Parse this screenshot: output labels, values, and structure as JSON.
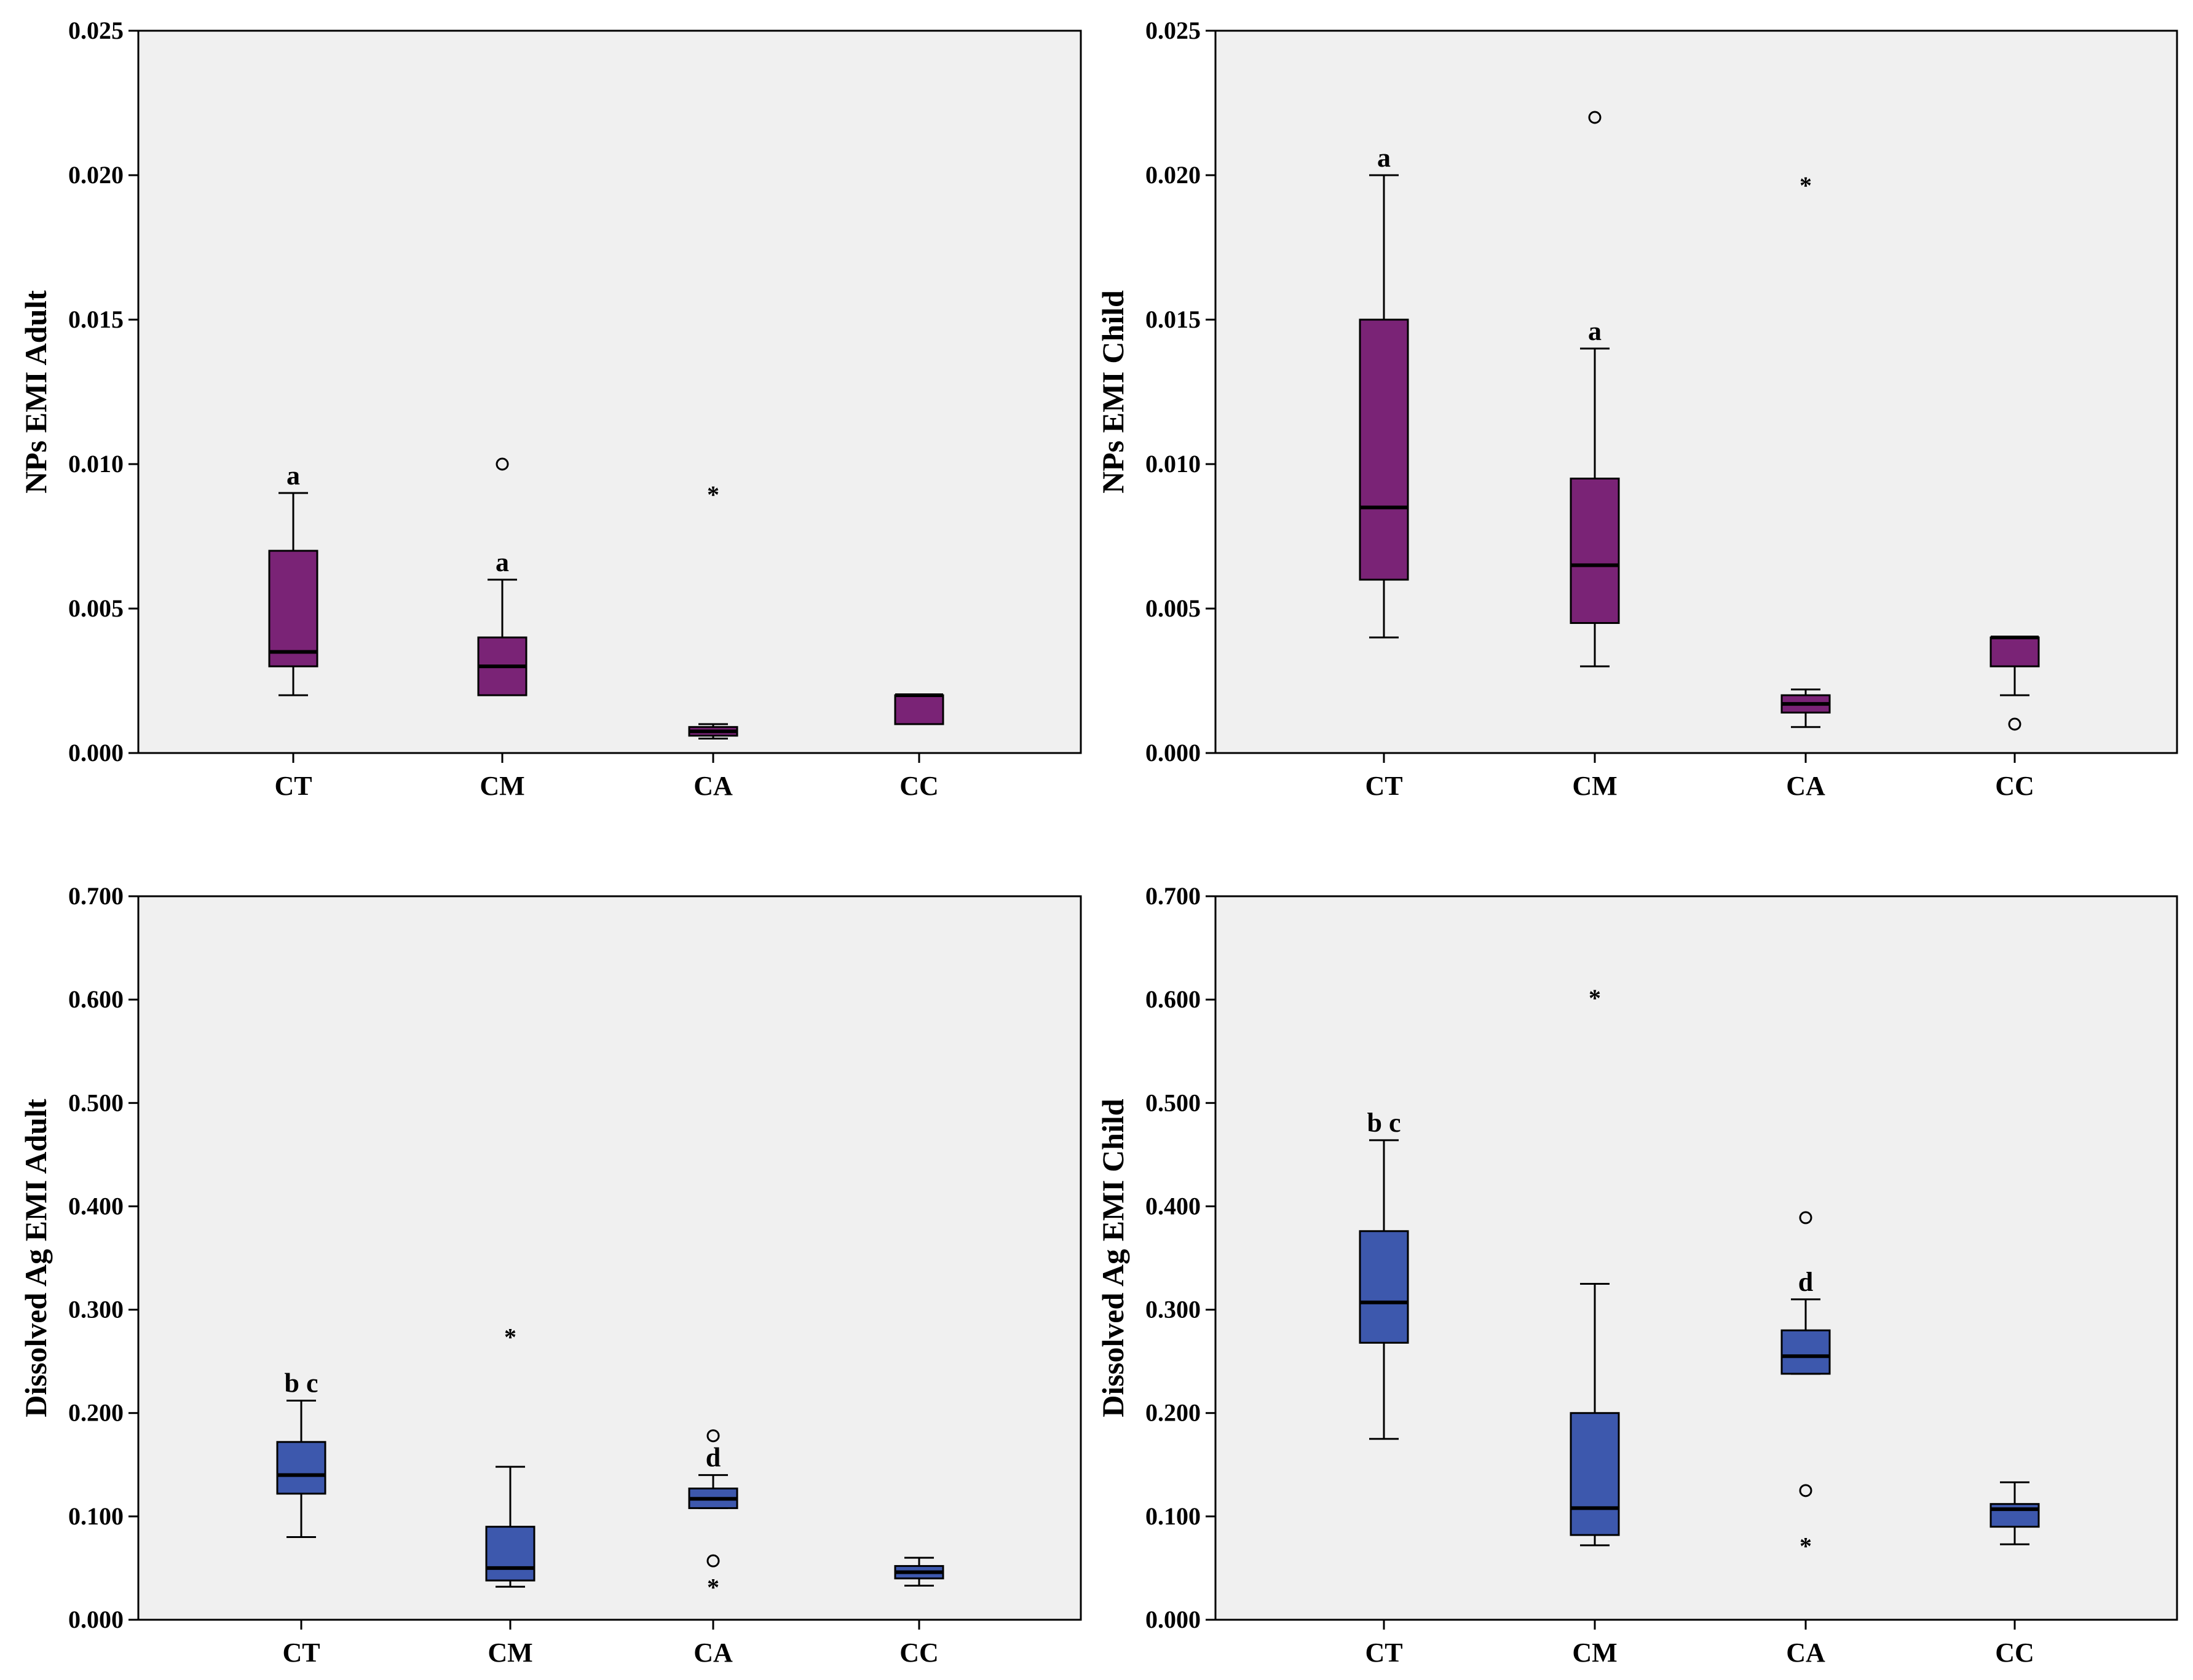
{
  "chart_data": [
    {
      "type": "boxplot",
      "ylabel": "NPs EMI Adult",
      "yticks": [
        "0.000",
        "0.005",
        "0.010",
        "0.015",
        "0.020",
        "0.025"
      ],
      "ylim": [
        0,
        0.025
      ],
      "categories": [
        "CT",
        "CM",
        "CA",
        "CC"
      ],
      "box_color": "#7a2376",
      "boxes": [
        {
          "category": "CT",
          "whisker_low": 0.002,
          "q1": 0.003,
          "median": 0.0035,
          "q3": 0.007,
          "whisker_high": 0.009,
          "outliers": [],
          "extremes": [],
          "label": "a"
        },
        {
          "category": "CM",
          "whisker_low": 0.002,
          "q1": 0.002,
          "median": 0.003,
          "q3": 0.004,
          "whisker_high": 0.006,
          "outliers": [
            0.01
          ],
          "extremes": [],
          "label": "a"
        },
        {
          "category": "CA",
          "whisker_low": 0.0005,
          "q1": 0.0006,
          "median": 0.00075,
          "q3": 0.0009,
          "whisker_high": 0.001,
          "outliers": [],
          "extremes": [
            0.009
          ],
          "label": ""
        },
        {
          "category": "CC",
          "whisker_low": 0.001,
          "q1": 0.001,
          "median": 0.002,
          "q3": 0.002,
          "whisker_high": 0.002,
          "outliers": [],
          "extremes": [],
          "label": ""
        }
      ]
    },
    {
      "type": "boxplot",
      "ylabel": "NPs EMI Child",
      "yticks": [
        "0.000",
        "0.005",
        "0.010",
        "0.015",
        "0.020",
        "0.025"
      ],
      "ylim": [
        0,
        0.025
      ],
      "categories": [
        "CT",
        "CM",
        "CA",
        "CC"
      ],
      "box_color": "#7a2376",
      "boxes": [
        {
          "category": "CT",
          "whisker_low": 0.004,
          "q1": 0.006,
          "median": 0.0085,
          "q3": 0.015,
          "whisker_high": 0.02,
          "outliers": [],
          "extremes": [],
          "label": "a"
        },
        {
          "category": "CM",
          "whisker_low": 0.003,
          "q1": 0.0045,
          "median": 0.0065,
          "q3": 0.0095,
          "whisker_high": 0.014,
          "outliers": [
            0.022
          ],
          "extremes": [],
          "label": "a"
        },
        {
          "category": "CA",
          "whisker_low": 0.0009,
          "q1": 0.0014,
          "median": 0.0017,
          "q3": 0.002,
          "whisker_high": 0.0022,
          "outliers": [],
          "extremes": [
            0.0197
          ],
          "label": ""
        },
        {
          "category": "CC",
          "whisker_low": 0.002,
          "q1": 0.003,
          "median": 0.004,
          "q3": 0.004,
          "whisker_high": 0.004,
          "outliers": [
            0.001
          ],
          "extremes": [],
          "label": ""
        }
      ]
    },
    {
      "type": "boxplot",
      "ylabel": "Dissolved Ag EMI Adult",
      "yticks": [
        "0.000",
        "0.100",
        "0.200",
        "0.300",
        "0.400",
        "0.500",
        "0.600",
        "0.700"
      ],
      "ylim": [
        0,
        0.7
      ],
      "categories": [
        "CT",
        "CM",
        "CA",
        "CC"
      ],
      "box_color": "#3d58ad",
      "boxes": [
        {
          "category": "CT",
          "whisker_low": 0.08,
          "q1": 0.122,
          "median": 0.14,
          "q3": 0.172,
          "whisker_high": 0.212,
          "outliers": [],
          "extremes": [],
          "label": "b c"
        },
        {
          "category": "CM",
          "whisker_low": 0.032,
          "q1": 0.038,
          "median": 0.05,
          "q3": 0.09,
          "whisker_high": 0.148,
          "outliers": [],
          "extremes": [
            0.275
          ],
          "label": ""
        },
        {
          "category": "CA",
          "whisker_low": 0.108,
          "q1": 0.108,
          "median": 0.117,
          "q3": 0.127,
          "whisker_high": 0.14,
          "outliers": [
            0.178,
            0.057
          ],
          "extremes": [
            0.033
          ],
          "label": "d"
        },
        {
          "category": "CC",
          "whisker_low": 0.033,
          "q1": 0.04,
          "median": 0.046,
          "q3": 0.052,
          "whisker_high": 0.06,
          "outliers": [],
          "extremes": [],
          "label": ""
        }
      ]
    },
    {
      "type": "boxplot",
      "ylabel": "Dissolved Ag EMI Child",
      "yticks": [
        "0.000",
        "0.100",
        "0.200",
        "0.300",
        "0.400",
        "0.500",
        "0.600",
        "0.700"
      ],
      "ylim": [
        0,
        0.7
      ],
      "categories": [
        "CT",
        "CM",
        "CA",
        "CC"
      ],
      "box_color": "#3d58ad",
      "boxes": [
        {
          "category": "CT",
          "whisker_low": 0.175,
          "q1": 0.268,
          "median": 0.307,
          "q3": 0.376,
          "whisker_high": 0.464,
          "outliers": [],
          "extremes": [],
          "label": "b c"
        },
        {
          "category": "CM",
          "whisker_low": 0.072,
          "q1": 0.082,
          "median": 0.108,
          "q3": 0.2,
          "whisker_high": 0.325,
          "outliers": [],
          "extremes": [
            0.603
          ],
          "label": ""
        },
        {
          "category": "CA",
          "whisker_low": 0.238,
          "q1": 0.238,
          "median": 0.255,
          "q3": 0.28,
          "whisker_high": 0.31,
          "outliers": [
            0.389,
            0.125
          ],
          "extremes": [
            0.073
          ],
          "label": "d"
        },
        {
          "category": "CC",
          "whisker_low": 0.073,
          "q1": 0.09,
          "median": 0.107,
          "q3": 0.112,
          "whisker_high": 0.133,
          "outliers": [],
          "extremes": [],
          "label": ""
        }
      ]
    }
  ]
}
